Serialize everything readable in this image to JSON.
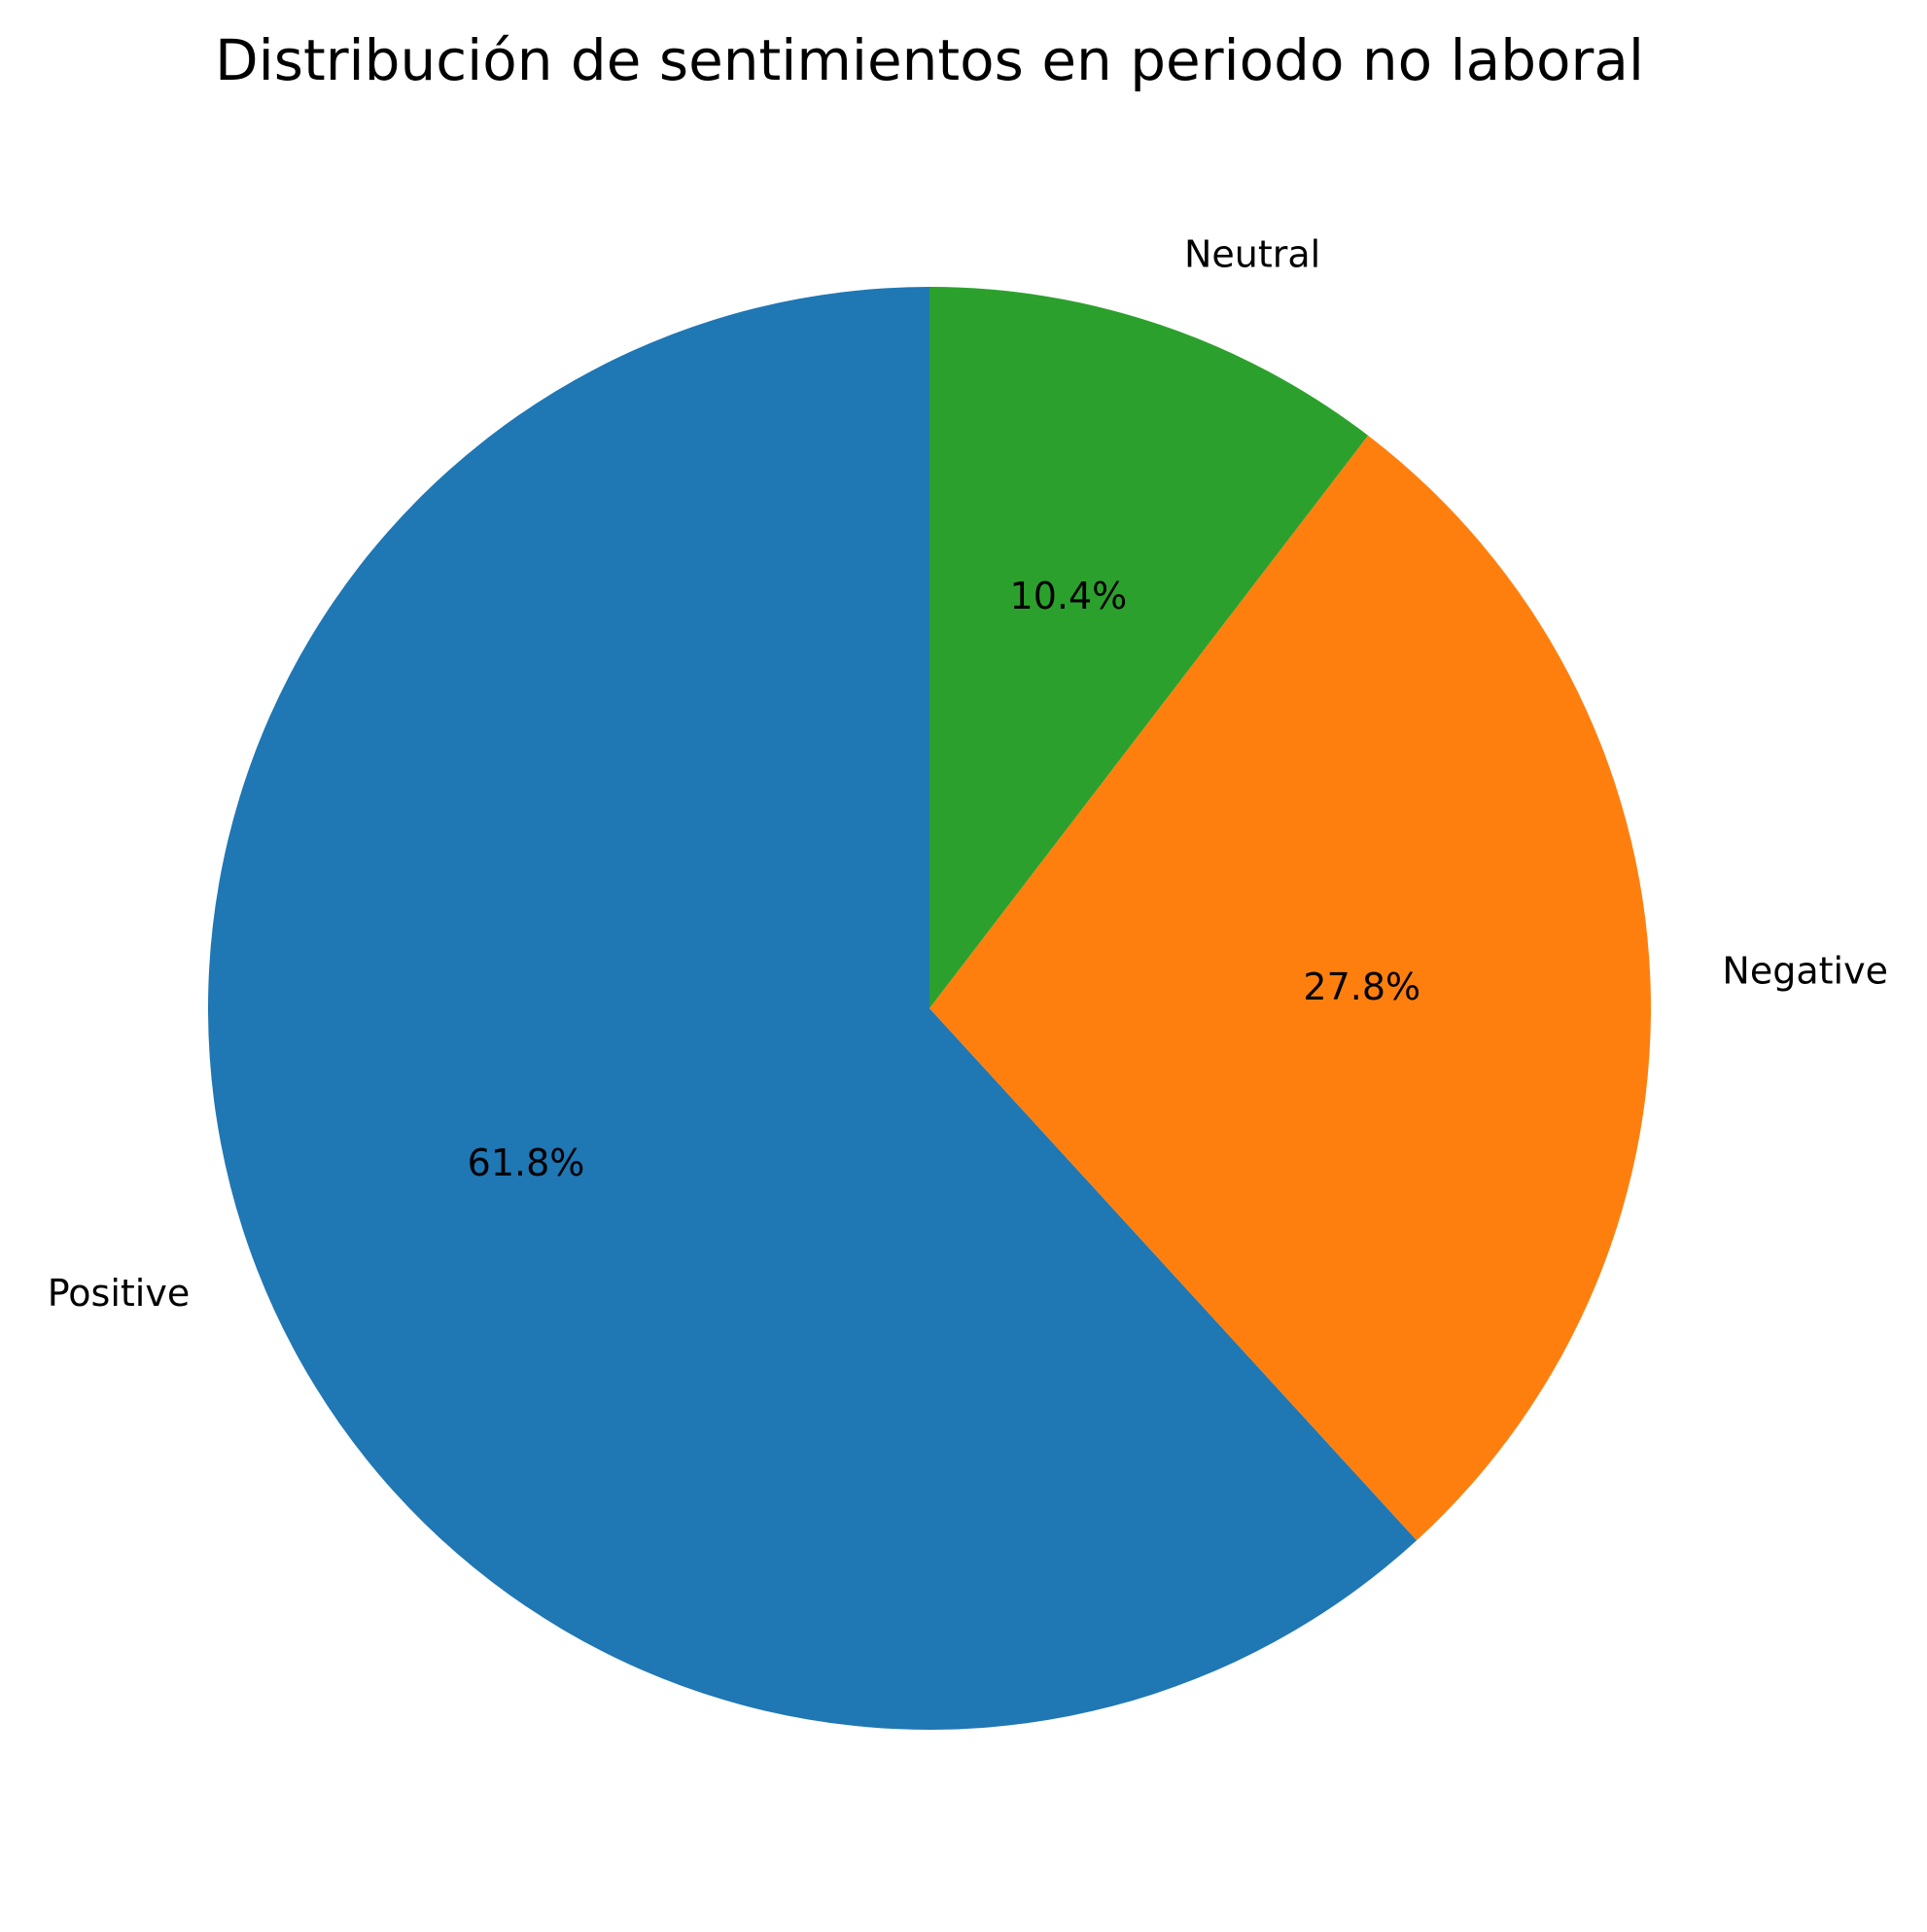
{
  "chart_data": {
    "type": "pie",
    "title": "Distribución de sentimientos en periodo no laboral",
    "start_angle_deg": 90,
    "direction": "counterclockwise",
    "slices": [
      {
        "label": "Positive",
        "value": 61.8,
        "pct_label": "61.8%",
        "color": "#1f77b4"
      },
      {
        "label": "Negative",
        "value": 27.8,
        "pct_label": "27.8%",
        "color": "#ff7f0e"
      },
      {
        "label": "Neutral",
        "value": 10.4,
        "pct_label": "10.4%",
        "color": "#2ca02c"
      }
    ]
  }
}
